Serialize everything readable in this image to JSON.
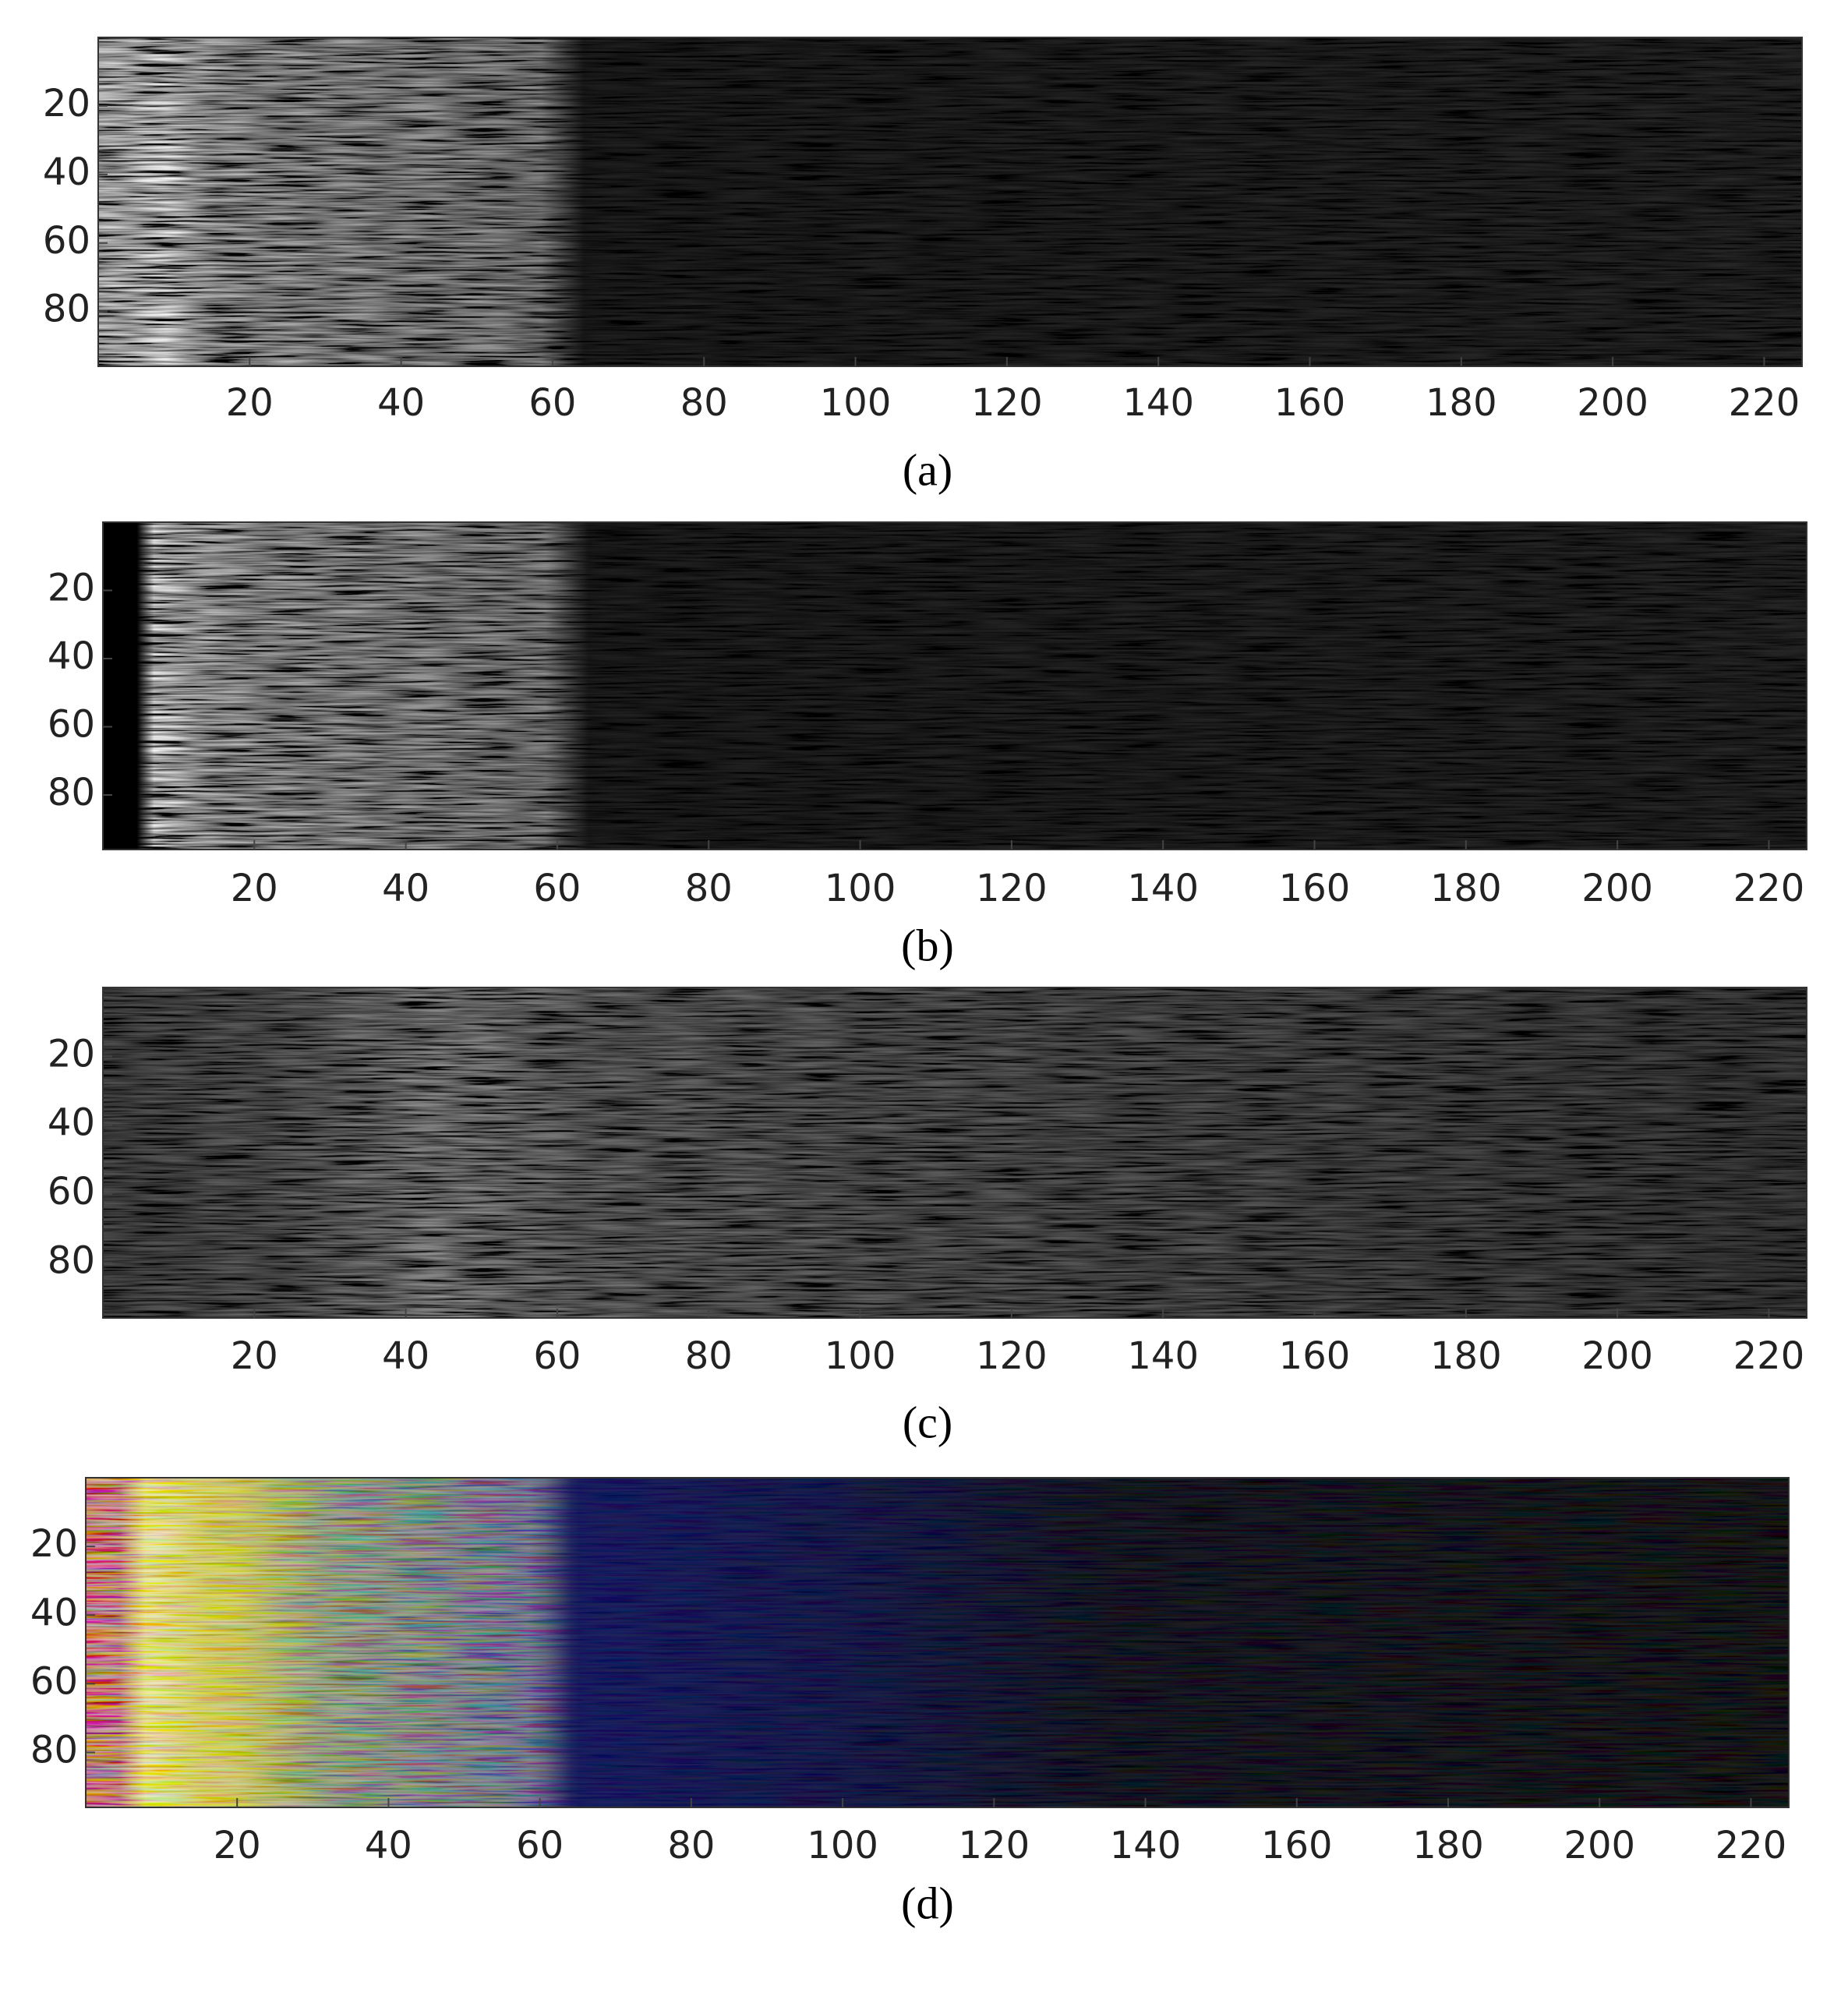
{
  "chart_data": [
    {
      "type": "heatmap",
      "colormap": "gray",
      "caption": "(a)",
      "xlim": [
        0,
        225
      ],
      "ylim": [
        0,
        96
      ],
      "y_inverted": true,
      "xticks": [
        20,
        40,
        60,
        80,
        100,
        120,
        140,
        160,
        180,
        200,
        220
      ],
      "yticks": [
        20,
        40,
        60,
        80
      ]
    },
    {
      "type": "heatmap",
      "colormap": "gray",
      "caption": "(b)",
      "xlim": [
        0,
        225
      ],
      "ylim": [
        0,
        96
      ],
      "y_inverted": true,
      "xticks": [
        20,
        40,
        60,
        80,
        100,
        120,
        140,
        160,
        180,
        200,
        220
      ],
      "yticks": [
        20,
        40,
        60,
        80
      ]
    },
    {
      "type": "heatmap",
      "colormap": "gray",
      "caption": "(c)",
      "xlim": [
        0,
        225
      ],
      "ylim": [
        0,
        96
      ],
      "y_inverted": true,
      "xticks": [
        20,
        40,
        60,
        80,
        100,
        120,
        140,
        160,
        180,
        200,
        220
      ],
      "yticks": [
        20,
        40,
        60,
        80
      ]
    },
    {
      "type": "heatmap",
      "colormap": "rgb",
      "caption": "(d)",
      "xlim": [
        0,
        225
      ],
      "ylim": [
        0,
        96
      ],
      "y_inverted": true,
      "xticks": [
        20,
        40,
        60,
        80,
        100,
        120,
        140,
        160,
        180,
        200,
        220
      ],
      "yticks": [
        20,
        40,
        60,
        80
      ]
    }
  ]
}
